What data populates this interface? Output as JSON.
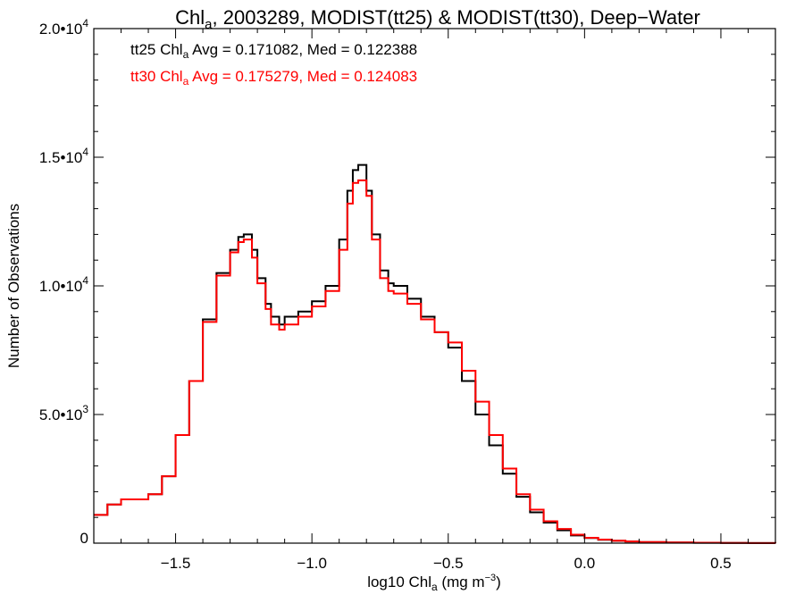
{
  "chart_data": {
    "type": "line",
    "title": {
      "prefix": "Chl",
      "sub": "a",
      "rest": ", 2003289, MODIST(tt25) & MODIST(tt30), Deep−Water"
    },
    "xlabel": {
      "prefix": "log10 Chl",
      "sub": "a",
      "mid": " (mg m",
      "sup": "−3",
      "suffix": ")"
    },
    "ylabel": "Number of Observations",
    "xlim": [
      -1.8,
      0.7
    ],
    "ylim": [
      0,
      20000
    ],
    "x_ticks": [
      {
        "value": -1.5,
        "label": "−1.5"
      },
      {
        "value": -1.0,
        "label": "−1.0"
      },
      {
        "value": -0.5,
        "label": "−0.5"
      },
      {
        "value": 0.0,
        "label": "0.0"
      },
      {
        "value": 0.5,
        "label": "0.5"
      }
    ],
    "x_minor_step": 0.1,
    "y_ticks": [
      {
        "value": 0,
        "mant": "0",
        "exp": ""
      },
      {
        "value": 5000,
        "mant": "5.0•10",
        "exp": "3"
      },
      {
        "value": 10000,
        "mant": "1.0•10",
        "exp": "4"
      },
      {
        "value": 15000,
        "mant": "1.5•10",
        "exp": "4"
      },
      {
        "value": 20000,
        "mant": "2.0•10",
        "exp": "4"
      }
    ],
    "y_minor_step": 1000,
    "annotations": [
      {
        "pre": "tt25 Chl",
        "sub": "a",
        "post": " Avg = 0.171082, Med = 0.122388",
        "color": "#000000"
      },
      {
        "pre": "tt30 Chl",
        "sub": "a",
        "post": " Avg = 0.175279, Med = 0.124083",
        "color": "#ff0000"
      }
    ],
    "series": [
      {
        "color": "#000000",
        "x": [
          -1.8,
          -1.75,
          -1.7,
          -1.65,
          -1.6,
          -1.55,
          -1.5,
          -1.45,
          -1.4,
          -1.35,
          -1.3,
          -1.27,
          -1.25,
          -1.22,
          -1.2,
          -1.17,
          -1.15,
          -1.12,
          -1.1,
          -1.05,
          -1.0,
          -0.95,
          -0.9,
          -0.87,
          -0.85,
          -0.83,
          -0.8,
          -0.78,
          -0.75,
          -0.72,
          -0.7,
          -0.65,
          -0.6,
          -0.55,
          -0.5,
          -0.45,
          -0.4,
          -0.35,
          -0.3,
          -0.25,
          -0.2,
          -0.15,
          -0.1,
          -0.05,
          0.0,
          0.05,
          0.1,
          0.15,
          0.2,
          0.3,
          0.4,
          0.5,
          0.6,
          0.7
        ],
        "y": [
          1100,
          1500,
          1700,
          1700,
          1900,
          2600,
          4200,
          6300,
          8700,
          10500,
          11400,
          11900,
          12000,
          11400,
          10300,
          9300,
          8800,
          8500,
          8800,
          9000,
          9400,
          10000,
          11800,
          13700,
          14500,
          14700,
          13700,
          12000,
          10600,
          10100,
          10000,
          9500,
          8800,
          8200,
          7600,
          6300,
          5000,
          3800,
          2700,
          1800,
          1200,
          800,
          500,
          300,
          200,
          130,
          90,
          60,
          40,
          25,
          15,
          10,
          5,
          0
        ]
      },
      {
        "color": "#ff0000",
        "x": [
          -1.8,
          -1.75,
          -1.7,
          -1.65,
          -1.6,
          -1.55,
          -1.5,
          -1.45,
          -1.4,
          -1.35,
          -1.3,
          -1.27,
          -1.25,
          -1.22,
          -1.2,
          -1.17,
          -1.15,
          -1.12,
          -1.1,
          -1.05,
          -1.0,
          -0.95,
          -0.9,
          -0.87,
          -0.85,
          -0.83,
          -0.8,
          -0.78,
          -0.75,
          -0.72,
          -0.7,
          -0.65,
          -0.6,
          -0.55,
          -0.5,
          -0.45,
          -0.4,
          -0.35,
          -0.3,
          -0.25,
          -0.2,
          -0.15,
          -0.1,
          -0.05,
          0.0,
          0.05,
          0.1,
          0.15,
          0.2,
          0.3,
          0.4,
          0.5,
          0.6,
          0.7
        ],
        "y": [
          1100,
          1500,
          1700,
          1700,
          1900,
          2600,
          4200,
          6300,
          8600,
          10400,
          11300,
          11700,
          11800,
          11100,
          10100,
          9100,
          8500,
          8300,
          8500,
          8800,
          9200,
          9800,
          11400,
          13200,
          14000,
          14100,
          13500,
          11800,
          10300,
          9800,
          9700,
          9300,
          8700,
          8200,
          7800,
          6700,
          5500,
          4200,
          2900,
          1900,
          1300,
          850,
          550,
          330,
          210,
          140,
          95,
          65,
          45,
          27,
          16,
          10,
          5,
          0
        ]
      }
    ]
  }
}
